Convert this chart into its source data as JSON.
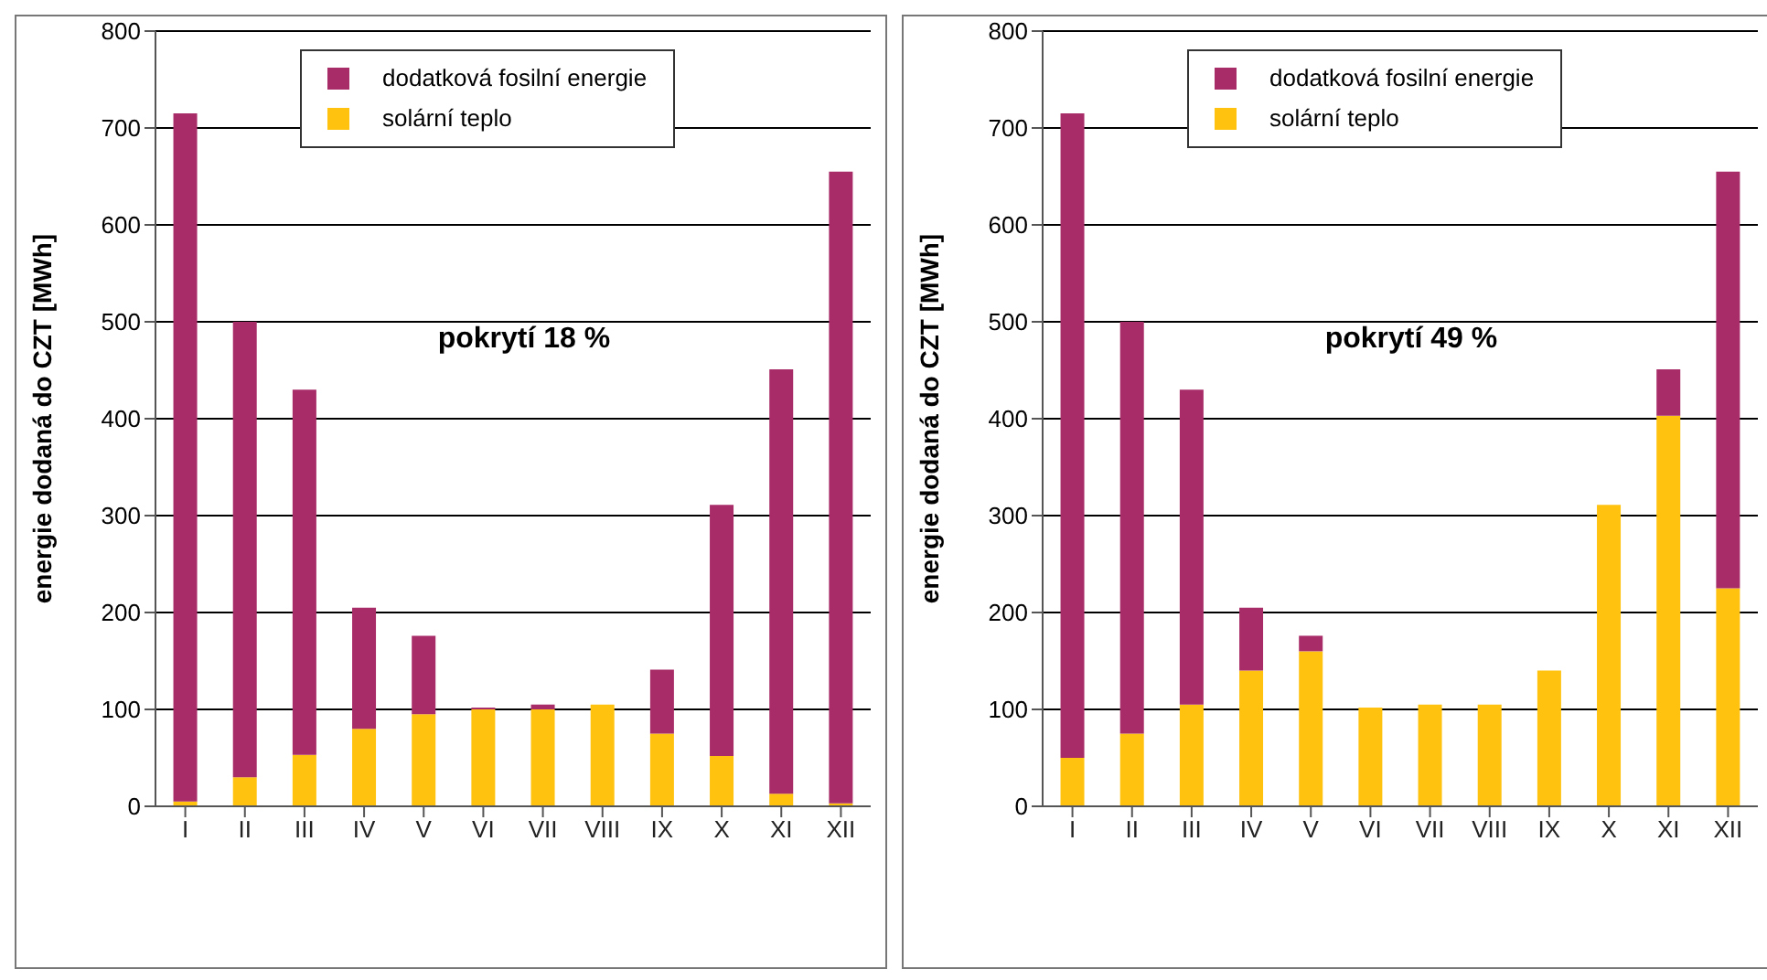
{
  "chart_data": [
    {
      "type": "bar",
      "stacked": true,
      "categories": [
        "I",
        "II",
        "III",
        "IV",
        "V",
        "VI",
        "VII",
        "VIII",
        "IX",
        "X",
        "XI",
        "XII"
      ],
      "ylabel": "energie dodaná do CZT [MWh]",
      "ylim": [
        0,
        800
      ],
      "yticks": [
        0,
        100,
        200,
        300,
        400,
        500,
        600,
        700,
        800
      ],
      "grid": "y",
      "legend": "top",
      "annotations": [
        "pokrytí 18 %"
      ],
      "series": [
        {
          "name": "solární teplo",
          "color": "#ffc20e",
          "values": [
            5,
            30,
            53,
            80,
            95,
            100,
            100,
            105,
            75,
            52,
            13,
            3
          ]
        },
        {
          "name": "dodatková fosilní energie",
          "color": "#a82c68",
          "values": [
            710,
            470,
            377,
            125,
            81,
            2,
            5,
            0,
            66,
            259,
            438,
            652
          ]
        }
      ]
    },
    {
      "type": "bar",
      "stacked": true,
      "categories": [
        "I",
        "II",
        "III",
        "IV",
        "V",
        "VI",
        "VII",
        "VIII",
        "IX",
        "X",
        "XI",
        "XII"
      ],
      "ylabel": "energie dodaná do CZT [MWh]",
      "ylim": [
        0,
        800
      ],
      "yticks": [
        0,
        100,
        200,
        300,
        400,
        500,
        600,
        700,
        800
      ],
      "grid": "y",
      "legend": "top",
      "annotations": [
        "pokrytí 49 %"
      ],
      "series": [
        {
          "name": "solární teplo",
          "color": "#ffc20e",
          "values": [
            50,
            75,
            105,
            140,
            160,
            102,
            105,
            105,
            140,
            311,
            403,
            225
          ]
        },
        {
          "name": "dodatková fosilní energie",
          "color": "#a82c68",
          "values": [
            665,
            425,
            325,
            65,
            16,
            0,
            0,
            0,
            0,
            0,
            48,
            430
          ]
        }
      ]
    }
  ]
}
